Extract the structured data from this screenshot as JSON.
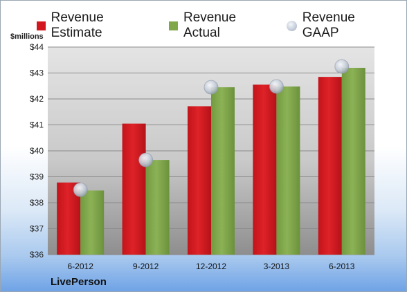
{
  "chart_data": {
    "type": "bar",
    "categories": [
      "6-2012",
      "9-2012",
      "12-2012",
      "3-2013",
      "6-2013"
    ],
    "series": [
      {
        "name": "Revenue Estimate",
        "type": "bar",
        "color": "#d3171e",
        "values": [
          38.78,
          41.05,
          41.72,
          42.55,
          42.85
        ]
      },
      {
        "name": "Revenue Actual",
        "type": "bar",
        "color": "#80a84a",
        "values": [
          38.47,
          39.65,
          42.45,
          42.48,
          43.2
        ]
      },
      {
        "name": "Revenue GAAP",
        "type": "scatter",
        "color": "#b8c1cd",
        "values": [
          38.5,
          39.65,
          42.45,
          42.48,
          43.25
        ]
      }
    ],
    "ylabel": "$millions",
    "ylim": [
      36,
      44
    ],
    "yticks": [
      "$36",
      "$37",
      "$38",
      "$39",
      "$40",
      "$41",
      "$42",
      "$43",
      "$44"
    ],
    "grid": true,
    "legend": "top"
  },
  "company": "LivePerson"
}
